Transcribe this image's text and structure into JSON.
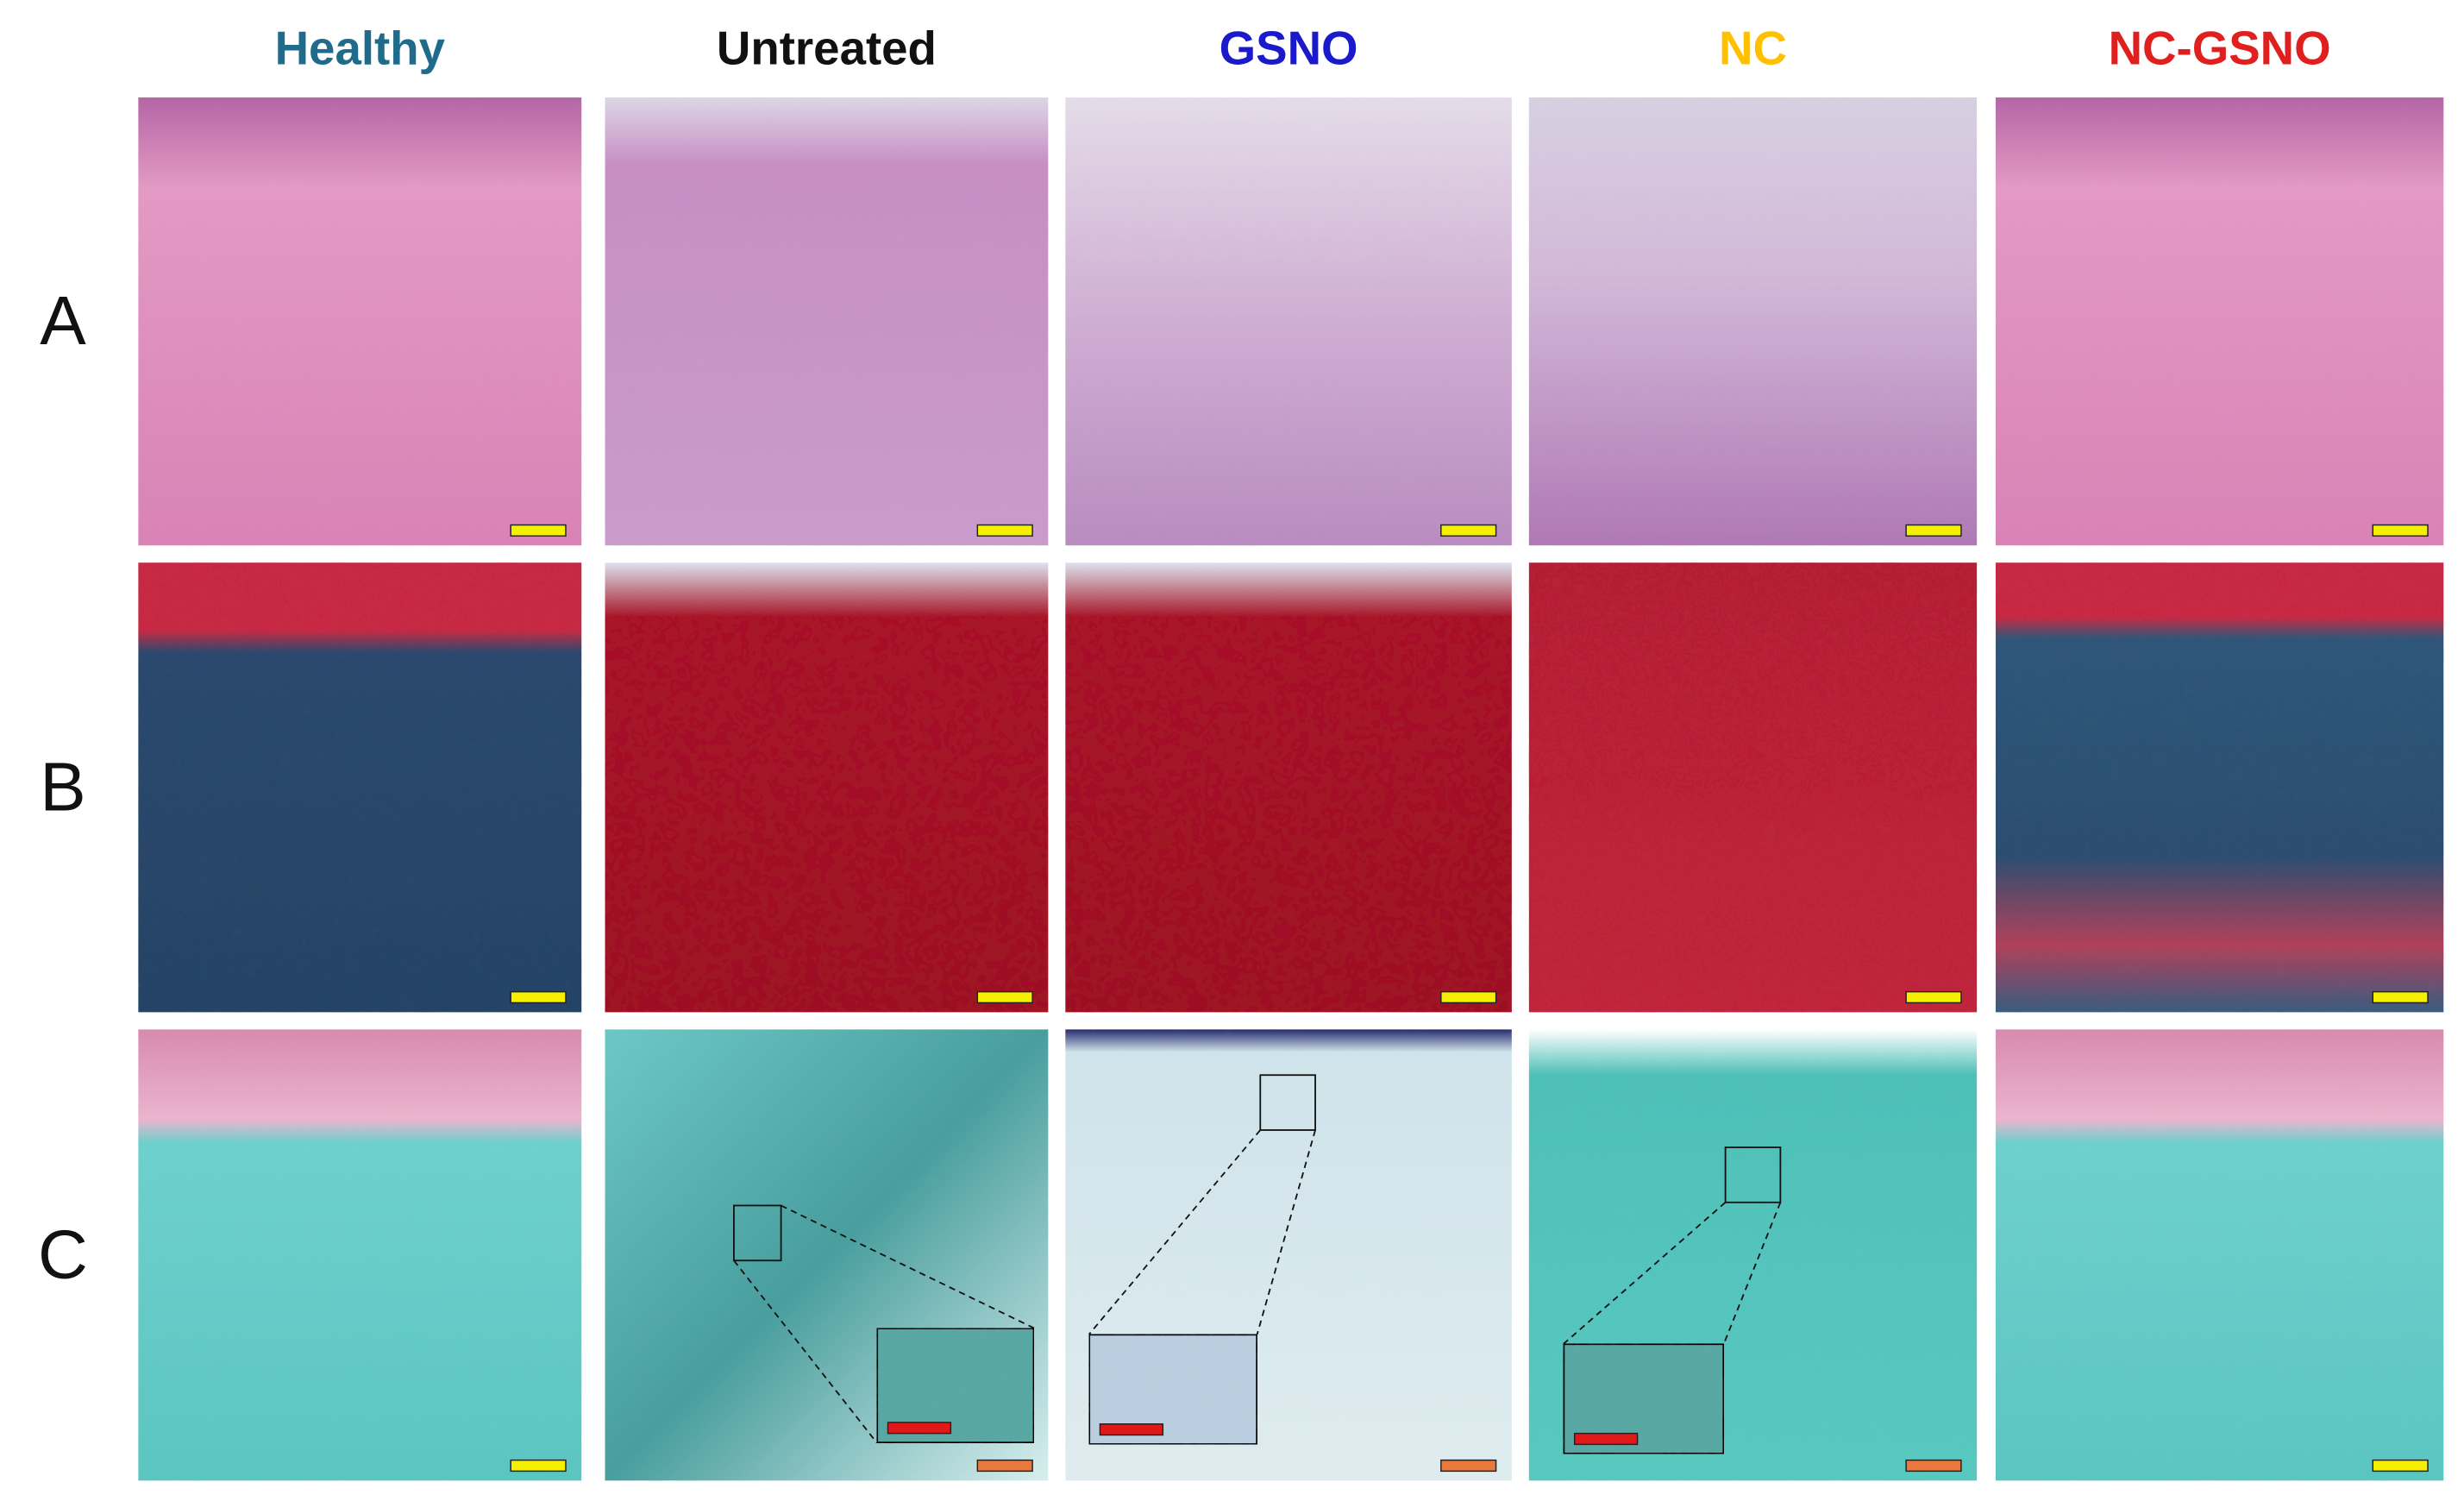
{
  "columns": [
    {
      "label": "Healthy",
      "color": "#1f6b8c"
    },
    {
      "label": "Untreated",
      "color": "#111111"
    },
    {
      "label": "GSNO",
      "color": "#1a1acc"
    },
    {
      "label": "NC",
      "color": "#ffc000"
    },
    {
      "label": "NC-GSNO",
      "color": "#e0201e"
    }
  ],
  "rows": [
    "A",
    "B",
    "C"
  ]
}
